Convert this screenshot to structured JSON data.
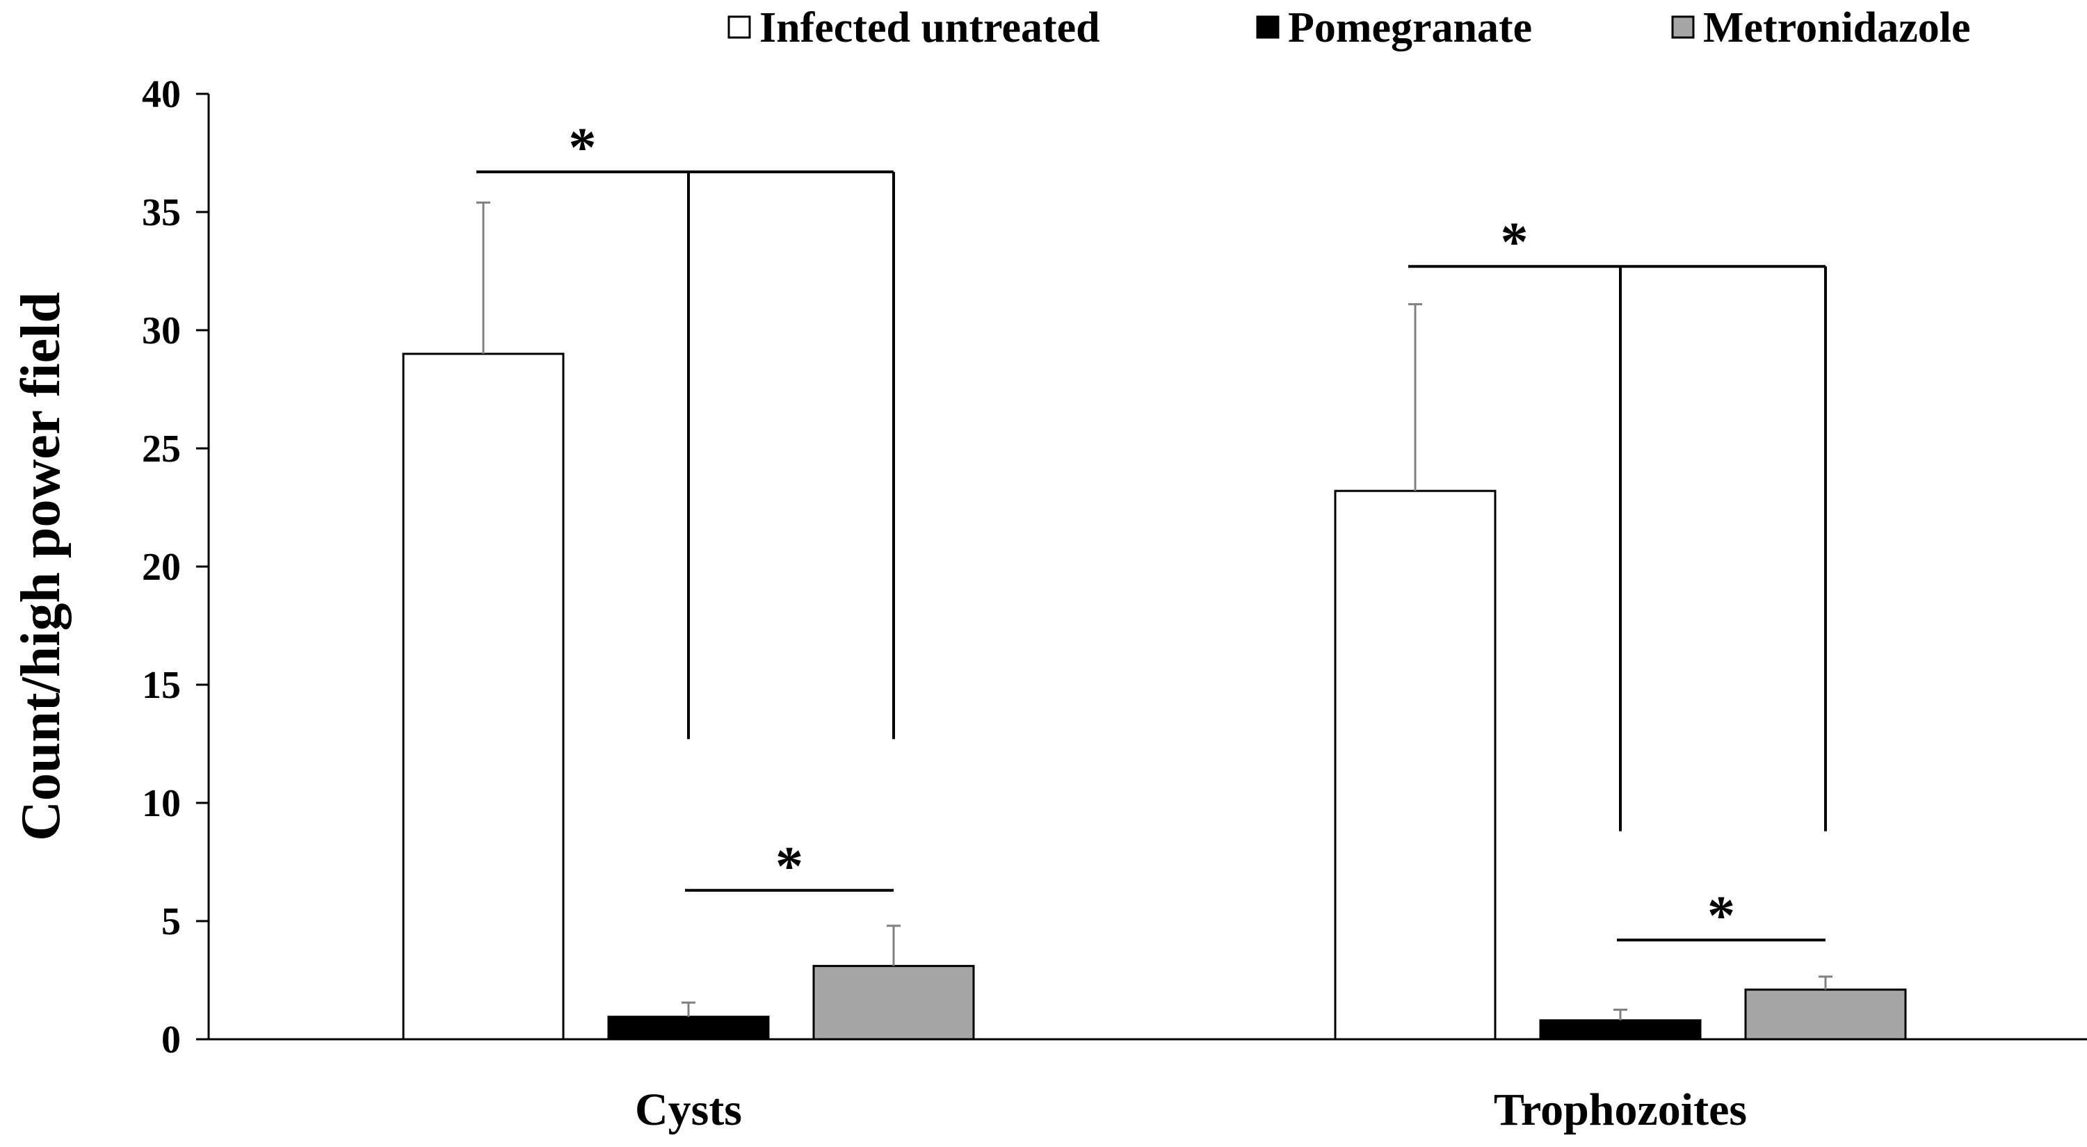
{
  "chart_data": {
    "type": "bar",
    "title": "",
    "xlabel": "",
    "ylabel": "Count/high power field",
    "ylim": [
      0,
      40
    ],
    "yticks": [
      0,
      5,
      10,
      15,
      20,
      25,
      30,
      35,
      40
    ],
    "grid": false,
    "legend_position": "top-right",
    "categories": [
      "Cysts",
      "Trophozoites"
    ],
    "series": [
      {
        "name": "Infected untreated",
        "values": [
          29.0,
          23.2
        ],
        "errors": [
          6.4,
          7.9
        ],
        "color": "#ffffff"
      },
      {
        "name": "Pomegranate",
        "values": [
          0.95,
          0.8
        ],
        "errors": [
          0.6,
          0.45
        ],
        "color": "#000000"
      },
      {
        "name": "Metronidazole",
        "values": [
          3.1,
          2.1
        ],
        "errors": [
          1.7,
          0.55
        ],
        "color": "#a6a6a6"
      }
    ],
    "significance": [
      {
        "category": "Cysts",
        "from": "Infected untreated",
        "to": [
          "Pomegranate",
          "Metronidazole"
        ],
        "level": 36.7,
        "label": "*"
      },
      {
        "category": "Cysts",
        "from": "Pomegranate",
        "to": [
          "Metronidazole"
        ],
        "level": 6.3,
        "label": "*"
      },
      {
        "category": "Trophozoites",
        "from": "Infected untreated",
        "to": [
          "Pomegranate",
          "Metronidazole"
        ],
        "level": 32.7,
        "label": "*"
      },
      {
        "category": "Trophozoites",
        "from": "Pomegranate",
        "to": [
          "Metronidazole"
        ],
        "level": 4.2,
        "label": "*"
      }
    ]
  }
}
